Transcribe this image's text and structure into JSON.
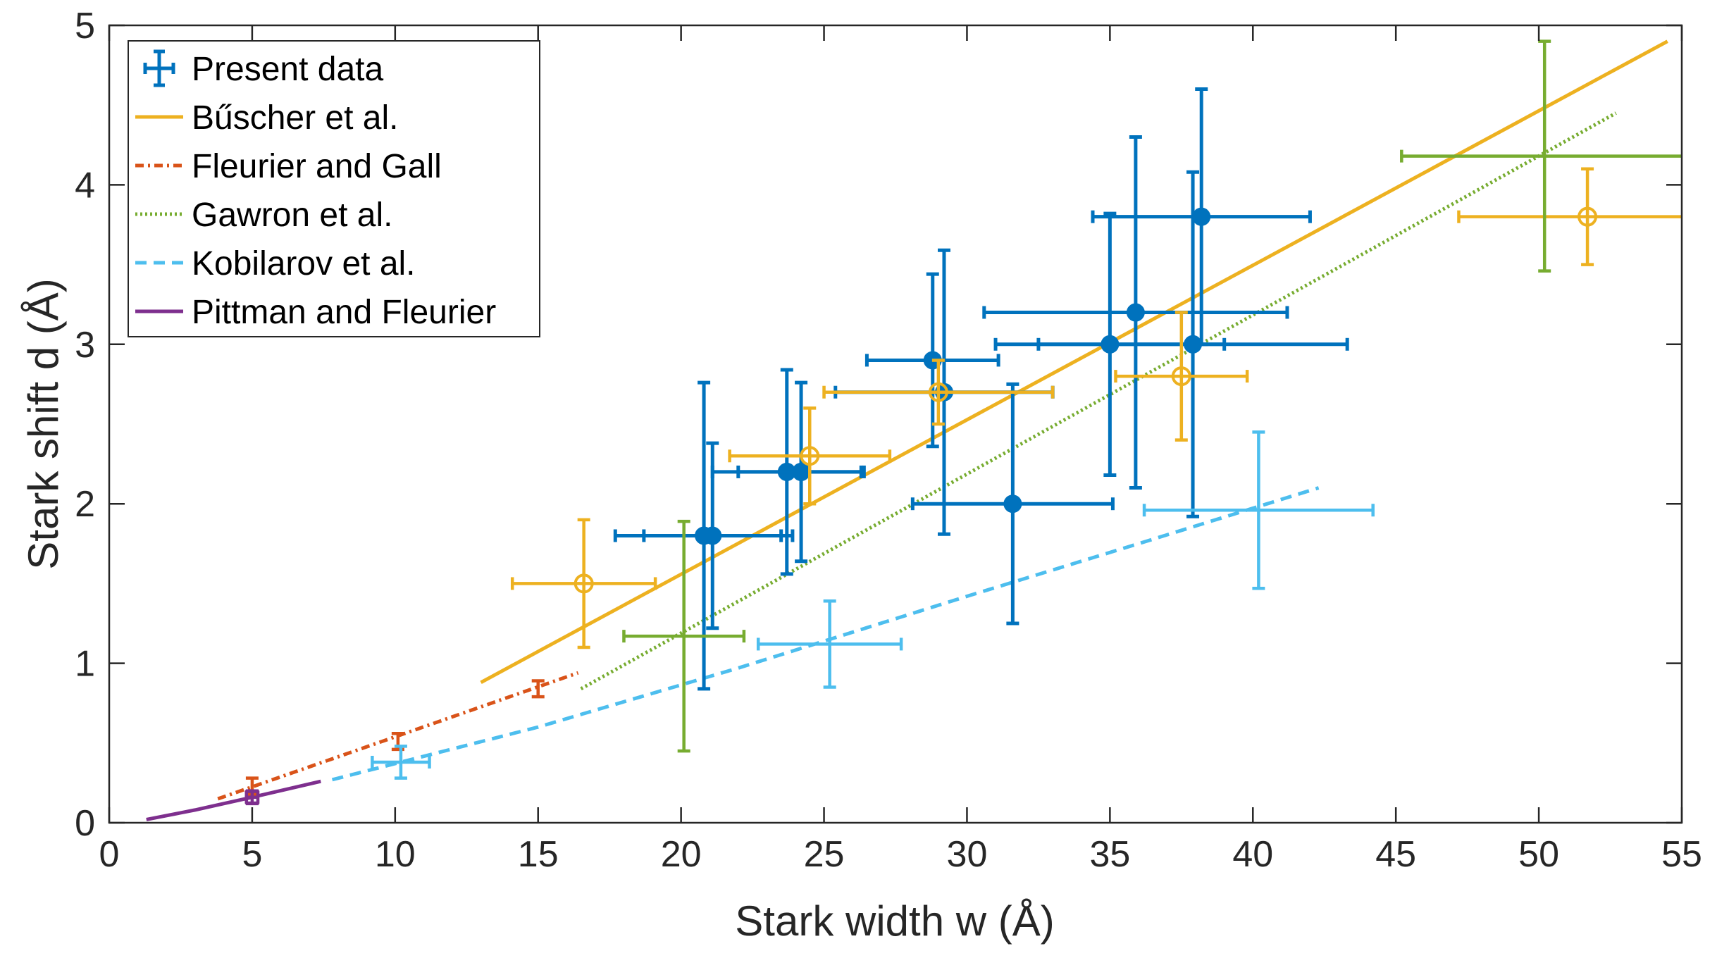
{
  "chart_data": {
    "type": "scatter",
    "title": "",
    "xlabel": "Stark width w (Å)",
    "ylabel": "Stark shift d (Å)",
    "xlim": [
      0,
      55
    ],
    "ylim": [
      0,
      5
    ],
    "xticks": [
      0,
      5,
      10,
      15,
      20,
      25,
      30,
      35,
      40,
      45,
      50,
      55
    ],
    "yticks": [
      0,
      1,
      2,
      3,
      4,
      5
    ],
    "grid": false,
    "legend_position": "top-left",
    "legend": [
      {
        "label": "Present data",
        "color": "#0072BD",
        "style": "errorbar"
      },
      {
        "label": "Bűscher et al.",
        "color": "#EDB120",
        "style": "solid"
      },
      {
        "label": "Fleurier and Gall",
        "color": "#D95319",
        "style": "dashdot"
      },
      {
        "label": "Gawron et al.",
        "color": "#77AC30",
        "style": "dotted"
      },
      {
        "label": "Kobilarov et al.",
        "color": "#4DBEEE",
        "style": "dashed"
      },
      {
        "label": "Pittman and Fleurier",
        "color": "#7E2F8E",
        "style": "solid"
      }
    ],
    "lines": [
      {
        "name": "Bűscher et al.",
        "color": "#EDB120",
        "style": "solid",
        "x": [
          13,
          54.5
        ],
        "y": [
          0.88,
          4.9
        ]
      },
      {
        "name": "Fleurier and Gall",
        "color": "#D95319",
        "style": "dashdot",
        "x": [
          3.8,
          16.4
        ],
        "y": [
          0.15,
          0.94
        ]
      },
      {
        "name": "Gawron et al.",
        "color": "#77AC30",
        "style": "dotted",
        "x": [
          16.5,
          52.7
        ],
        "y": [
          0.84,
          4.45
        ]
      },
      {
        "name": "Kobilarov et al.",
        "color": "#4DBEEE",
        "style": "dashed",
        "x": [
          7.8,
          15,
          22,
          30,
          36,
          42.3
        ],
        "y": [
          0.27,
          0.6,
          0.97,
          1.42,
          1.75,
          2.1
        ]
      },
      {
        "name": "Pittman and Fleurier",
        "color": "#7E2F8E",
        "style": "solid",
        "x": [
          1.3,
          3,
          5,
          7.4
        ],
        "y": [
          0.02,
          0.08,
          0.16,
          0.26
        ]
      }
    ],
    "points": [
      {
        "series": "Present data",
        "color": "#0072BD",
        "marker": "filled-circle",
        "x": 20.8,
        "y": 1.8,
        "xerr": 3.1,
        "yerr": 0.96
      },
      {
        "series": "Present data",
        "color": "#0072BD",
        "marker": "filled-circle",
        "x": 21.1,
        "y": 1.8,
        "xerr": 2.4,
        "yerr": 0.58
      },
      {
        "series": "Present data",
        "color": "#0072BD",
        "marker": "filled-circle",
        "x": 23.7,
        "y": 2.2,
        "xerr": 2.6,
        "yerr": 0.64
      },
      {
        "series": "Present data",
        "color": "#0072BD",
        "marker": "filled-circle",
        "x": 24.2,
        "y": 2.2,
        "xerr": 2.2,
        "yerr": 0.56
      },
      {
        "series": "Present data",
        "color": "#0072BD",
        "marker": "filled-circle",
        "x": 28.8,
        "y": 2.9,
        "xerr": 2.3,
        "yerr": 0.54
      },
      {
        "series": "Present data",
        "color": "#0072BD",
        "marker": "filled-circle",
        "x": 29.2,
        "y": 2.7,
        "xerr": 3.8,
        "yerr": 0.89
      },
      {
        "series": "Present data",
        "color": "#0072BD",
        "marker": "filled-circle",
        "x": 31.6,
        "y": 2.0,
        "xerr": 3.5,
        "yerr": 0.75
      },
      {
        "series": "Present data",
        "color": "#0072BD",
        "marker": "filled-circle",
        "x": 35.0,
        "y": 3.0,
        "xerr": 4.0,
        "yerr": 0.82
      },
      {
        "series": "Present data",
        "color": "#0072BD",
        "marker": "filled-circle",
        "x": 35.9,
        "y": 3.2,
        "xerr": 5.3,
        "yerr": 1.1
      },
      {
        "series": "Present data",
        "color": "#0072BD",
        "marker": "filled-circle",
        "x": 37.9,
        "y": 3.0,
        "xerr": 5.4,
        "yerr": 1.08
      },
      {
        "series": "Present data",
        "color": "#0072BD",
        "marker": "filled-circle",
        "x": 38.2,
        "y": 3.8,
        "xerr": 3.8,
        "yerr": 0.8
      },
      {
        "series": "Bűscher et al.",
        "color": "#EDB120",
        "marker": "open-circle",
        "x": 16.6,
        "y": 1.5,
        "xerr": 2.5,
        "yerr": 0.4
      },
      {
        "series": "Bűscher et al.",
        "color": "#EDB120",
        "marker": "open-circle",
        "x": 24.5,
        "y": 2.3,
        "xerr": 2.8,
        "yerr": 0.3
      },
      {
        "series": "Bűscher et al.",
        "color": "#EDB120",
        "marker": "open-circle",
        "x": 29.0,
        "y": 2.7,
        "xerr": 4.0,
        "yerr": 0.2
      },
      {
        "series": "Bűscher et al.",
        "color": "#EDB120",
        "marker": "open-circle",
        "x": 37.5,
        "y": 2.8,
        "xerr": 2.3,
        "yerr": 0.4
      },
      {
        "series": "Bűscher et al.",
        "color": "#EDB120",
        "marker": "open-circle",
        "x": 51.7,
        "y": 3.8,
        "xerr": 4.5,
        "yerr": 0.3
      },
      {
        "series": "Fleurier and Gall",
        "color": "#D95319",
        "marker": "none",
        "x": 5.0,
        "y": 0.23,
        "xerr": 0,
        "yerr": 0.05
      },
      {
        "series": "Fleurier and Gall",
        "color": "#D95319",
        "marker": "none",
        "x": 10.1,
        "y": 0.51,
        "xerr": 0,
        "yerr": 0.05
      },
      {
        "series": "Fleurier and Gall",
        "color": "#D95319",
        "marker": "none",
        "x": 15.0,
        "y": 0.84,
        "xerr": 0,
        "yerr": 0.05
      },
      {
        "series": "Gawron et al.",
        "color": "#77AC30",
        "marker": "none",
        "x": 20.1,
        "y": 1.17,
        "xerr": 2.1,
        "yerr": 0.72
      },
      {
        "series": "Gawron et al.",
        "color": "#77AC30",
        "marker": "none",
        "x": 50.2,
        "y": 4.18,
        "xerr": 5.0,
        "yerr": 0.72
      },
      {
        "series": "Kobilarov et al.",
        "color": "#4DBEEE",
        "marker": "none",
        "x": 10.2,
        "y": 0.38,
        "xerr": 1.0,
        "yerr": 0.1
      },
      {
        "series": "Kobilarov et al.",
        "color": "#4DBEEE",
        "marker": "none",
        "x": 25.2,
        "y": 1.12,
        "xerr": 2.5,
        "yerr": 0.27
      },
      {
        "series": "Kobilarov et al.",
        "color": "#4DBEEE",
        "marker": "none",
        "x": 40.2,
        "y": 1.96,
        "xerr": 4.0,
        "yerr": 0.49
      },
      {
        "series": "Pittman and Fleurier",
        "color": "#7E2F8E",
        "marker": "open-square",
        "x": 5.0,
        "y": 0.16,
        "xerr": 0.2,
        "yerr": 0.04
      }
    ]
  }
}
